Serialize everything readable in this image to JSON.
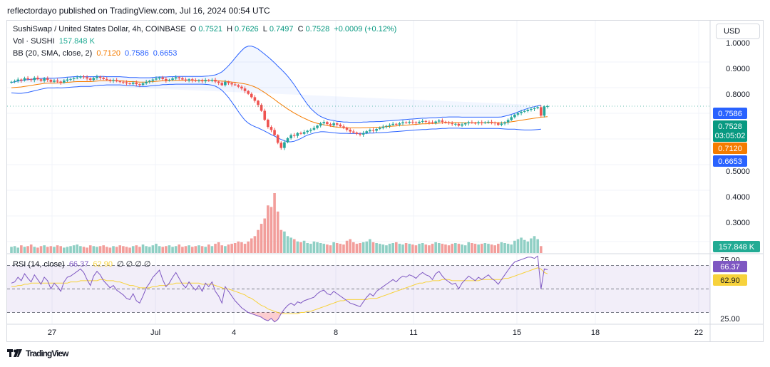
{
  "header": {
    "published_text": "reflectordayo published on TradingView.com, Jul 16, 2024 00:54 UTC"
  },
  "legend": {
    "symbol": "SushiSwap / United States Dollar, 4h, COINBASE",
    "o_label": "O",
    "o": "0.7521",
    "h_label": "H",
    "h": "0.7626",
    "l_label": "L",
    "l": "0.7497",
    "c_label": "C",
    "c": "0.7528",
    "change": "+0.0009 (+0.12%)",
    "vol_label": "Vol · SUSHI",
    "vol": "157.848 K",
    "bb_label": "BB (20, SMA, close, 2)",
    "bb_mid": "0.7120",
    "bb_upper": "0.7586",
    "bb_lower": "0.6653",
    "rsi_label": "RSI (14, close)",
    "rsi": "66.37",
    "rsi_ma": "62.90",
    "rsi_extra": "∅ ∅ ∅ ∅"
  },
  "currency_button": "USD",
  "footer": {
    "brand": "TradingView",
    "logo_icon": "tradingview-logo-icon"
  },
  "colors": {
    "up": "#26a69a",
    "down": "#ef5350",
    "bb_band": "#2962ff",
    "bb_basis": "#f57c00",
    "rsi_line": "#7e57c2",
    "rsi_ma": "#f7d23c",
    "vol_up": "#8fcfc4",
    "vol_down": "#f29e9b"
  },
  "chart_data": {
    "type": "candlestick",
    "price_axis": {
      "ylim": [
        0.18,
        1.07
      ],
      "ticks": [
        "1.0000",
        "0.9000",
        "0.8000",
        "0.5000",
        "0.4000",
        "0.3000"
      ]
    },
    "rsi_axis": {
      "ylim": [
        20,
        80
      ],
      "ticks": [
        "75.00",
        "25.00"
      ],
      "levels": [
        70,
        50,
        30
      ]
    },
    "x_ticks": [
      "27",
      "Jul",
      "4",
      "8",
      "11",
      "15",
      "18",
      "22"
    ],
    "price_labels": [
      {
        "text": "0.7586",
        "value": 0.7586,
        "color": "#2962ff"
      },
      {
        "text": "0.7528",
        "sub": "03:05:02",
        "value": 0.7528,
        "color": "#089981"
      },
      {
        "text": "0.7120",
        "value": 0.712,
        "color": "#f57c00"
      },
      {
        "text": "0.6653",
        "value": 0.6653,
        "color": "#2962ff"
      }
    ],
    "volume_label": "157.848 K",
    "rsi_labels": [
      {
        "text": "66.37",
        "value": 66.37,
        "color": "#7e57c2"
      },
      {
        "text": "62.90",
        "value": 62.9,
        "color": "#f7d23c"
      }
    ],
    "closes": [
      0.848,
      0.851,
      0.857,
      0.853,
      0.862,
      0.858,
      0.855,
      0.864,
      0.858,
      0.852,
      0.861,
      0.856,
      0.848,
      0.853,
      0.849,
      0.845,
      0.853,
      0.857,
      0.859,
      0.862,
      0.865,
      0.869,
      0.866,
      0.861,
      0.855,
      0.863,
      0.868,
      0.864,
      0.859,
      0.856,
      0.852,
      0.855,
      0.85,
      0.848,
      0.846,
      0.842,
      0.84,
      0.845,
      0.839,
      0.836,
      0.842,
      0.848,
      0.852,
      0.857,
      0.861,
      0.865,
      0.859,
      0.853,
      0.856,
      0.861,
      0.866,
      0.862,
      0.857,
      0.853,
      0.858,
      0.854,
      0.851,
      0.854,
      0.85,
      0.855,
      0.852,
      0.856,
      0.849,
      0.844,
      0.835,
      0.848,
      0.843,
      0.838,
      0.835,
      0.829,
      0.822,
      0.812,
      0.801,
      0.788,
      0.774,
      0.758,
      0.735,
      0.7,
      0.672,
      0.66,
      0.64,
      0.61,
      0.59,
      0.612,
      0.628,
      0.64,
      0.637,
      0.648,
      0.645,
      0.652,
      0.657,
      0.661,
      0.668,
      0.677,
      0.686,
      0.691,
      0.683,
      0.678,
      0.686,
      0.681,
      0.674,
      0.669,
      0.661,
      0.654,
      0.65,
      0.645,
      0.642,
      0.648,
      0.655,
      0.66,
      0.657,
      0.664,
      0.668,
      0.673,
      0.676,
      0.68,
      0.684,
      0.681,
      0.686,
      0.69,
      0.688,
      0.692,
      0.69,
      0.687,
      0.692,
      0.695,
      0.692,
      0.69,
      0.687,
      0.693,
      0.697,
      0.692,
      0.689,
      0.686,
      0.683,
      0.684,
      0.677,
      0.682,
      0.686,
      0.69,
      0.688,
      0.686,
      0.69,
      0.687,
      0.69,
      0.692,
      0.689,
      0.686,
      0.68,
      0.685,
      0.69,
      0.699,
      0.71,
      0.72,
      0.726,
      0.731,
      0.734,
      0.739,
      0.742,
      0.745,
      0.749,
      0.716,
      0.752,
      0.7528
    ],
    "bb_basis": [
      0.825,
      0.826,
      0.827,
      0.828,
      0.83,
      0.832,
      0.834,
      0.836,
      0.838,
      0.84,
      0.842,
      0.843,
      0.843,
      0.843,
      0.844,
      0.844,
      0.845,
      0.846,
      0.847,
      0.848,
      0.849,
      0.849,
      0.849,
      0.849,
      0.849,
      0.85,
      0.851,
      0.852,
      0.852,
      0.852,
      0.852,
      0.852,
      0.852,
      0.852,
      0.851,
      0.85,
      0.849,
      0.849,
      0.848,
      0.847,
      0.847,
      0.847,
      0.848,
      0.849,
      0.85,
      0.851,
      0.852,
      0.852,
      0.853,
      0.853,
      0.854,
      0.854,
      0.854,
      0.854,
      0.854,
      0.854,
      0.854,
      0.854,
      0.854,
      0.854,
      0.854,
      0.854,
      0.853,
      0.852,
      0.851,
      0.85,
      0.849,
      0.847,
      0.846,
      0.844,
      0.842,
      0.84,
      0.837,
      0.833,
      0.828,
      0.822,
      0.814,
      0.806,
      0.797,
      0.788,
      0.779,
      0.769,
      0.76,
      0.751,
      0.742,
      0.734,
      0.726,
      0.719,
      0.712,
      0.706,
      0.7,
      0.694,
      0.69,
      0.686,
      0.683,
      0.68,
      0.677,
      0.675,
      0.673,
      0.671,
      0.67,
      0.669,
      0.669,
      0.668,
      0.668,
      0.668,
      0.668,
      0.669,
      0.669,
      0.67,
      0.67,
      0.671,
      0.671,
      0.672,
      0.673,
      0.674,
      0.675,
      0.676,
      0.677,
      0.678,
      0.679,
      0.68,
      0.681,
      0.682,
      0.683,
      0.684,
      0.684,
      0.685,
      0.686,
      0.686,
      0.687,
      0.688,
      0.688,
      0.689,
      0.689,
      0.689,
      0.689,
      0.688,
      0.688,
      0.688,
      0.688,
      0.688,
      0.688,
      0.688,
      0.688,
      0.688,
      0.688,
      0.688,
      0.688,
      0.688,
      0.689,
      0.69,
      0.692,
      0.694,
      0.696,
      0.698,
      0.7,
      0.702,
      0.704,
      0.706,
      0.708,
      0.71,
      0.711,
      0.712
    ],
    "bb_width": [
      0.02,
      0.022,
      0.024,
      0.025,
      0.025,
      0.025,
      0.024,
      0.023,
      0.022,
      0.021,
      0.02,
      0.019,
      0.019,
      0.019,
      0.019,
      0.02,
      0.02,
      0.02,
      0.02,
      0.02,
      0.02,
      0.019,
      0.019,
      0.019,
      0.019,
      0.018,
      0.018,
      0.017,
      0.017,
      0.016,
      0.016,
      0.016,
      0.016,
      0.016,
      0.016,
      0.016,
      0.016,
      0.016,
      0.017,
      0.017,
      0.017,
      0.017,
      0.016,
      0.016,
      0.016,
      0.016,
      0.015,
      0.015,
      0.015,
      0.015,
      0.015,
      0.015,
      0.015,
      0.015,
      0.015,
      0.015,
      0.015,
      0.015,
      0.015,
      0.016,
      0.017,
      0.019,
      0.022,
      0.028,
      0.036,
      0.048,
      0.062,
      0.078,
      0.095,
      0.112,
      0.128,
      0.142,
      0.15,
      0.154,
      0.155,
      0.154,
      0.152,
      0.15,
      0.148,
      0.146,
      0.143,
      0.14,
      0.137,
      0.133,
      0.128,
      0.12,
      0.11,
      0.098,
      0.085,
      0.072,
      0.06,
      0.05,
      0.042,
      0.035,
      0.03,
      0.027,
      0.025,
      0.024,
      0.024,
      0.023,
      0.023,
      0.022,
      0.022,
      0.022,
      0.022,
      0.022,
      0.022,
      0.022,
      0.022,
      0.022,
      0.022,
      0.022,
      0.022,
      0.022,
      0.022,
      0.022,
      0.022,
      0.022,
      0.022,
      0.022,
      0.022,
      0.022,
      0.022,
      0.022,
      0.022,
      0.022,
      0.022,
      0.022,
      0.022,
      0.022,
      0.022,
      0.022,
      0.022,
      0.022,
      0.022,
      0.022,
      0.022,
      0.022,
      0.022,
      0.022,
      0.022,
      0.022,
      0.022,
      0.022,
      0.022,
      0.022,
      0.022,
      0.022,
      0.022,
      0.023,
      0.025,
      0.027,
      0.029,
      0.031,
      0.034,
      0.037,
      0.04,
      0.042,
      0.044,
      0.045,
      0.046,
      0.047
    ],
    "volume": [
      8,
      9,
      7,
      10,
      8,
      9,
      11,
      8,
      7,
      9,
      10,
      8,
      9,
      8,
      10,
      9,
      7,
      8,
      9,
      10,
      11,
      9,
      8,
      7,
      10,
      9,
      8,
      9,
      10,
      8,
      7,
      9,
      8,
      10,
      9,
      8,
      7,
      9,
      10,
      8,
      11,
      9,
      8,
      10,
      12,
      9,
      8,
      9,
      10,
      8,
      9,
      11,
      8,
      9,
      10,
      8,
      9,
      10,
      9,
      8,
      11,
      9,
      12,
      14,
      10,
      9,
      11,
      12,
      13,
      15,
      14,
      12,
      15,
      19,
      22,
      30,
      38,
      45,
      62,
      60,
      78,
      54,
      30,
      28,
      22,
      20,
      18,
      15,
      14,
      16,
      13,
      12,
      15,
      14,
      13,
      12,
      11,
      10,
      14,
      13,
      12,
      11,
      16,
      18,
      14,
      12,
      13,
      14,
      15,
      18,
      14,
      13,
      12,
      11,
      10,
      12,
      13,
      14,
      12,
      11,
      13,
      12,
      11,
      10,
      12,
      13,
      11,
      10,
      12,
      14,
      13,
      12,
      11,
      10,
      12,
      13,
      12,
      11,
      10,
      14,
      13,
      12,
      11,
      12,
      13,
      12,
      11,
      10,
      12,
      14,
      13,
      12,
      11,
      16,
      18,
      20,
      17,
      15,
      19,
      22,
      18,
      9
    ],
    "rsi": [
      55,
      56,
      60,
      57,
      63,
      59,
      56,
      62,
      58,
      54,
      60,
      57,
      50,
      55,
      52,
      48,
      56,
      60,
      61,
      63,
      65,
      67,
      64,
      58,
      53,
      61,
      65,
      62,
      57,
      54,
      51,
      53,
      49,
      47,
      45,
      42,
      41,
      46,
      40,
      38,
      44,
      51,
      55,
      60,
      63,
      66,
      58,
      52,
      55,
      60,
      64,
      59,
      54,
      51,
      56,
      52,
      49,
      53,
      48,
      55,
      52,
      56,
      48,
      44,
      38,
      52,
      48,
      44,
      40,
      37,
      34,
      32,
      30,
      29,
      28,
      27,
      26,
      24,
      23,
      25,
      22,
      24,
      29,
      33,
      36,
      38,
      36,
      39,
      38,
      40,
      41,
      42,
      43,
      46,
      48,
      49,
      46,
      45,
      48,
      46,
      44,
      42,
      40,
      38,
      37,
      36,
      35,
      39,
      43,
      46,
      44,
      48,
      50,
      52,
      54,
      56,
      58,
      56,
      59,
      61,
      60,
      62,
      61,
      59,
      62,
      64,
      62,
      61,
      58,
      63,
      65,
      61,
      58,
      56,
      54,
      55,
      50,
      55,
      58,
      61,
      59,
      57,
      60,
      58,
      60,
      62,
      59,
      57,
      54,
      58,
      62,
      66,
      70,
      73,
      74,
      75,
      76,
      77,
      77,
      76,
      78,
      50,
      67,
      66.37
    ],
    "rsi_ma": [
      52,
      52,
      53,
      53,
      54,
      54,
      55,
      55,
      55,
      55,
      55,
      55,
      55,
      55,
      55,
      55,
      55,
      55,
      56,
      56,
      56,
      57,
      57,
      57,
      57,
      57,
      57,
      58,
      58,
      57,
      57,
      57,
      56,
      56,
      55,
      54,
      53,
      53,
      52,
      51,
      51,
      51,
      51,
      52,
      52,
      53,
      53,
      53,
      54,
      54,
      55,
      55,
      55,
      55,
      55,
      55,
      55,
      55,
      54,
      54,
      54,
      54,
      53,
      52,
      51,
      50,
      50,
      49,
      48,
      47,
      46,
      45,
      43,
      42,
      40,
      38,
      36,
      35,
      33,
      32,
      31,
      30,
      29,
      29,
      29,
      29,
      29,
      29,
      30,
      30,
      31,
      31,
      32,
      33,
      34,
      35,
      36,
      37,
      38,
      39,
      40,
      40,
      41,
      41,
      41,
      41,
      41,
      41,
      41,
      42,
      42,
      42,
      43,
      44,
      45,
      46,
      47,
      48,
      49,
      50,
      51,
      52,
      53,
      54,
      55,
      55,
      56,
      56,
      57,
      57,
      57,
      58,
      58,
      58,
      57,
      57,
      57,
      57,
      57,
      57,
      57,
      57,
      57,
      58,
      58,
      58,
      58,
      58,
      58,
      58,
      59,
      59,
      60,
      61,
      62,
      63,
      64,
      65,
      66,
      67,
      68,
      67,
      64,
      62.9
    ]
  }
}
